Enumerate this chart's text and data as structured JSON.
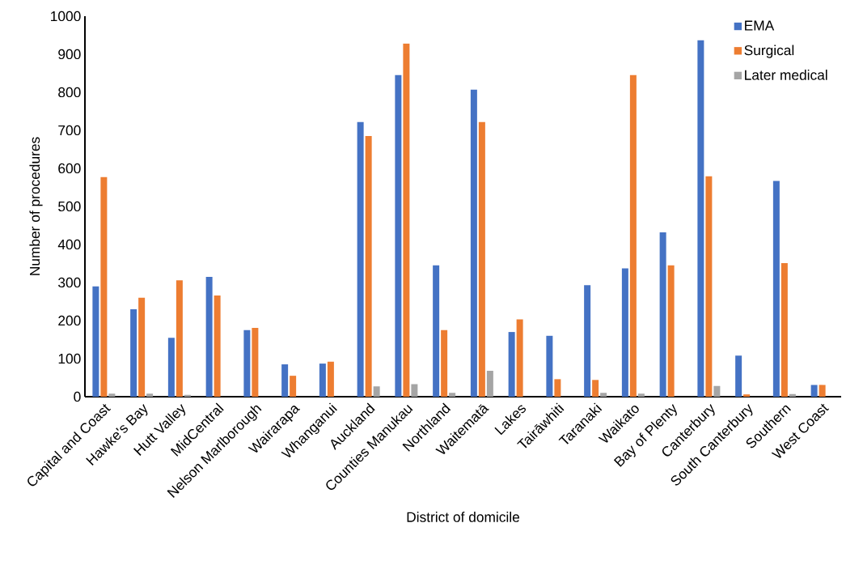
{
  "chart_data": {
    "type": "bar",
    "xlabel": "District of domicile",
    "ylabel": "Number of procedures",
    "categories": [
      "Capital and Coast",
      "Hawke's Bay",
      "Hutt Valley",
      "MidCentral",
      "Nelson Marlborough",
      "Wairarapa",
      "Whanganui",
      "Auckland",
      "Counties Manukau",
      "Northland",
      "Waitematā",
      "Lakes",
      "Tairāwhiti",
      "Taranaki",
      "Waikato",
      "Bay of Plenty",
      "Canterbury",
      "South Canterbury",
      "Southern",
      "West Coast"
    ],
    "series": [
      {
        "name": "EMA",
        "color": "#4472c4",
        "values": [
          290,
          230,
          155,
          315,
          175,
          85,
          87,
          722,
          845,
          345,
          807,
          170,
          160,
          293,
          337,
          432,
          937,
          108,
          567,
          31
        ]
      },
      {
        "name": "Surgical",
        "color": "#ed7d31",
        "values": [
          577,
          260,
          306,
          266,
          181,
          55,
          92,
          685,
          928,
          175,
          722,
          203,
          46,
          44,
          845,
          345,
          579,
          6,
          351,
          31
        ]
      },
      {
        "name": "Later medical",
        "color": "#a5a5a5",
        "values": [
          8,
          8,
          5,
          0,
          0,
          0,
          0,
          27,
          33,
          10,
          68,
          0,
          0,
          10,
          8,
          0,
          28,
          0,
          7,
          0
        ]
      }
    ],
    "ylim": [
      0,
      1000
    ],
    "yticks": [
      0,
      100,
      200,
      300,
      400,
      500,
      600,
      700,
      800,
      900,
      1000
    ],
    "legend": "top right"
  }
}
